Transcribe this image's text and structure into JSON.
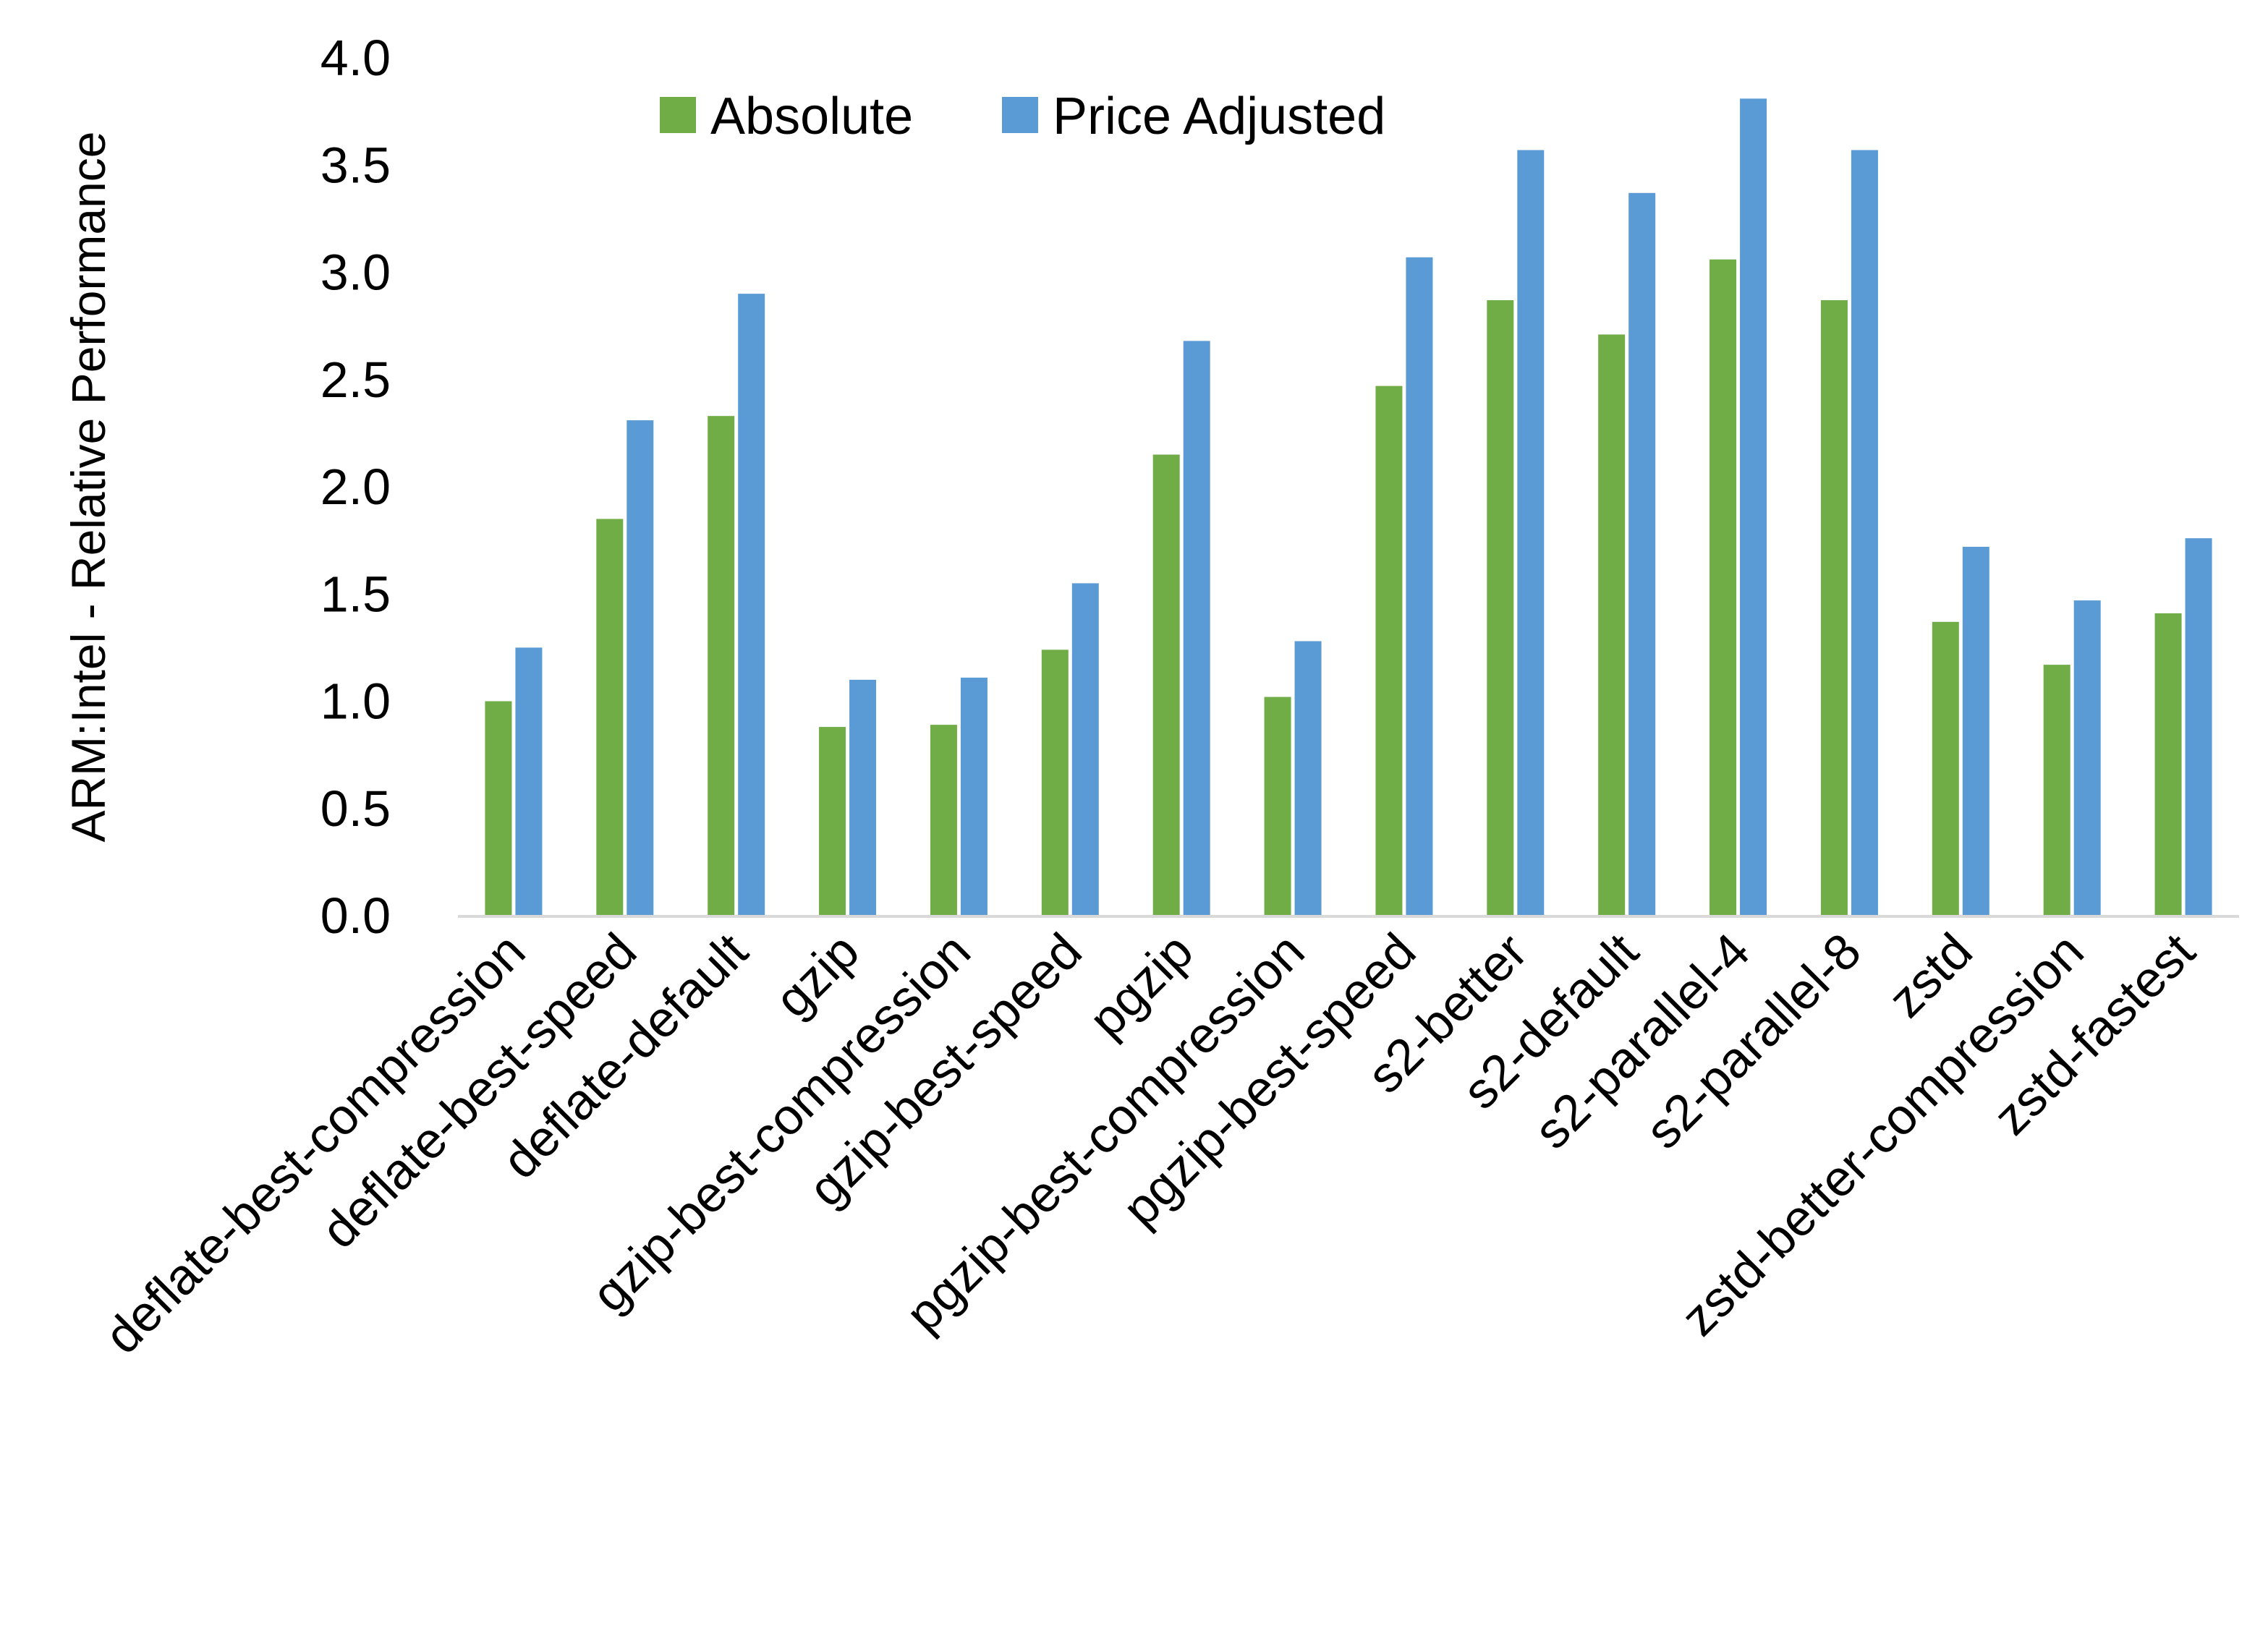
{
  "chart_data": {
    "type": "bar",
    "title": "",
    "xlabel": "",
    "ylabel": "ARM:Intel - Relative Performance",
    "ylim": [
      0,
      4
    ],
    "yticks": [
      "0.0",
      "0.5",
      "1.0",
      "1.5",
      "2.0",
      "2.5",
      "3.0",
      "3.5",
      "4.0"
    ],
    "grid": false,
    "legend_position": "top",
    "categories": [
      "deflate-best-compression",
      "deflate-best-speed",
      "deflate-default",
      "gzip",
      "gzip-best-compression",
      "gzip-best-speed",
      "pgzip",
      "pgzip-best-compression",
      "pgzip-best-speed",
      "s2-better",
      "s2-default",
      "s2-parallel-4",
      "s2-parallel-8",
      "zstd",
      "zstd-better-compression",
      "zstd-fastest"
    ],
    "series": [
      {
        "name": "Absolute",
        "color": "#70AD47",
        "values": [
          1.0,
          1.85,
          2.33,
          0.88,
          0.89,
          1.24,
          2.15,
          1.02,
          2.47,
          2.87,
          2.71,
          3.06,
          2.87,
          1.37,
          1.17,
          1.41
        ]
      },
      {
        "name": "Price Adjusted",
        "color": "#5B9BD5",
        "values": [
          1.25,
          2.31,
          2.9,
          1.1,
          1.11,
          1.55,
          2.68,
          1.28,
          3.07,
          3.57,
          3.37,
          3.81,
          3.57,
          1.72,
          1.47,
          1.76
        ]
      }
    ]
  }
}
